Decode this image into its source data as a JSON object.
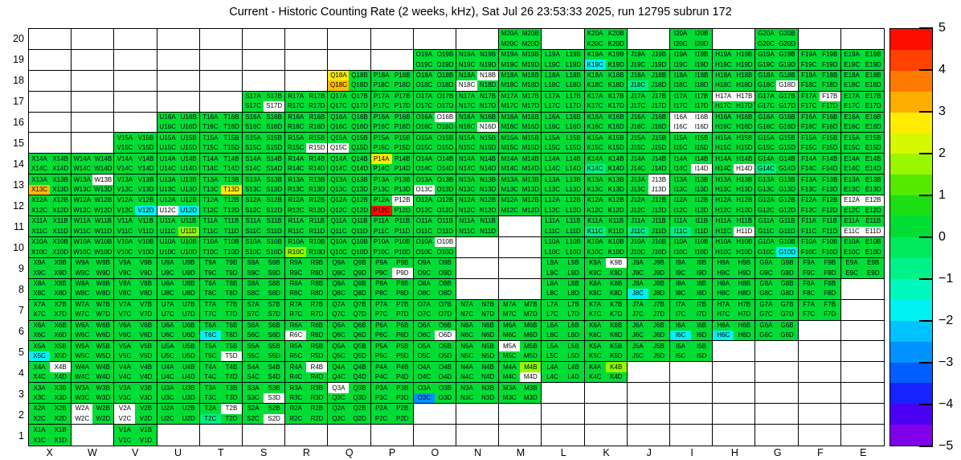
{
  "title": "Current - Historic Counting Rate (2 weeks, kHz), Sat Jul 26 23:53:33 2025, run 12795 subrun 172",
  "chart_data": {
    "type": "heatmap",
    "title": "Current - Historic Counting Rate (2 weeks, kHz), Sat Jul 26 23:53:33 2025, run 12795 subrun 172",
    "run": "12795",
    "subrun": "172",
    "columns": [
      "X",
      "W",
      "V",
      "U",
      "T",
      "S",
      "R",
      "Q",
      "P",
      "O",
      "N",
      "M",
      "L",
      "K",
      "J",
      "I",
      "H",
      "G",
      "F",
      "E"
    ],
    "rows": [
      20,
      19,
      18,
      17,
      16,
      15,
      14,
      13,
      12,
      11,
      10,
      9,
      8,
      7,
      6,
      5,
      4,
      3,
      2,
      1
    ],
    "cell_suffixes": [
      "A",
      "B",
      "C",
      "D"
    ],
    "value_scale": {
      "min": -5,
      "max": 5,
      "units": "kHz (current - historic)"
    },
    "palette": {
      "g": "#00DE36",
      "a": "#00EF82",
      "c": "#00F2F2",
      "G": "#93FB00",
      "y": "#FFEC00",
      "d": "#FFBC00",
      "r": "#FF0E00",
      "b": "#0092FF",
      "w": "#FFFFFF"
    },
    "palette_legend": {
      "g": "green ~0 to 1",
      "a": "spring green ~-0.5",
      "c": "cyan ~-2",
      "G": "chartreuse ~2",
      "y": "yellow ~3",
      "d": "gold ~3.5",
      "r": "red ~5",
      "b": "blue ~-2.5",
      "w": "white / out of range"
    },
    "cells": [
      [
        null,
        null,
        null,
        null,
        null,
        null,
        null,
        null,
        null,
        null,
        null,
        "gggg",
        null,
        "gggg",
        null,
        "gggg",
        null,
        "gggg",
        null,
        null
      ],
      [
        null,
        null,
        null,
        null,
        null,
        null,
        null,
        null,
        null,
        "gggg",
        "gggg",
        "gggg",
        "gggg",
        "ggcg",
        "gggg",
        "gggg",
        "gggg",
        "gggg",
        "gggg",
        "gggg"
      ],
      [
        null,
        null,
        null,
        null,
        null,
        null,
        null,
        "ygdg",
        "gggg",
        "gggg",
        "gwwg",
        "gggg",
        "gggg",
        "gggg",
        "ggag",
        "gggg",
        "gggg",
        "gggw",
        "gggg",
        "gggg"
      ],
      [
        null,
        null,
        null,
        null,
        null,
        "gggw",
        "gggg",
        "gggg",
        "gggg",
        "gggg",
        "gggg",
        "gggg",
        "gggg",
        "gggg",
        "gggg",
        "gggg",
        "wwgg",
        "gggg",
        "gwgg",
        "gggg"
      ],
      [
        null,
        null,
        null,
        "gggg",
        "gggg",
        "gggg",
        "gggg",
        "gggg",
        "gggg",
        "gwgg",
        "gggw",
        "gggg",
        "gggg",
        "gggg",
        "gggg",
        "wwww",
        "gggg",
        "gggg",
        "gggg",
        "gggg"
      ],
      [
        null,
        null,
        "gggg",
        "gggg",
        "gggg",
        "gggg",
        "gggw",
        "ggwg",
        "gggg",
        "gggg",
        "gggg",
        "gggg",
        "gggg",
        "gggg",
        "gggg",
        "gggg",
        "gggg",
        "gggg",
        "gggg",
        "gggg"
      ],
      [
        "gggg",
        "gggg",
        "gggg",
        "gggg",
        "gggg",
        "gggg",
        "gggg",
        "gggg",
        "yggg",
        "gggg",
        "gggg",
        "gggg",
        "gggg",
        "ggag",
        "gggg",
        "gggw",
        "gggw",
        "ggag",
        "gggg",
        "gggg"
      ],
      [
        "ggdg",
        "gwgg",
        "gggg",
        "gggg",
        "gggy",
        "gggg",
        "gggg",
        "gggg",
        "gggg",
        "ggwg",
        "gggg",
        "gggg",
        "gggg",
        "gggg",
        "gwgw",
        "gggg",
        "gggg",
        "gggg",
        "gggg",
        "gggg"
      ],
      [
        "gggg",
        "gggg",
        "gggc",
        "ggwc",
        "gggg",
        "gggg",
        "gggg",
        "gggg",
        "gwrg",
        "gggg",
        "gggg",
        "gggg",
        "gggg",
        "gggg",
        "gggg",
        "gggg",
        "gggg",
        "gggg",
        "gggg",
        "wwgg"
      ],
      [
        "gggg",
        "gggg",
        "gggg",
        "gggG",
        "gggg",
        "gggg",
        "gggg",
        "gggg",
        "gggg",
        "gggg",
        "gggg",
        null,
        "gggg",
        "ggag",
        "ggag",
        "ggag",
        "gggw",
        "gggg",
        "gggg",
        "ggww"
      ],
      [
        "gggg",
        "gggg",
        "gggg",
        "gggg",
        "gggg",
        "gggg",
        "ggGg",
        "gggg",
        "gggg",
        "gwgg",
        null,
        null,
        "gggg",
        "gggg",
        "gggg",
        "gggg",
        "gggg",
        "gggc",
        "gggg",
        "gggg"
      ],
      [
        "gggg",
        "gggg",
        "gggg",
        "gggg",
        "gggg",
        "gggg",
        "gggg",
        "gggg",
        "gggw",
        "gggg",
        null,
        null,
        "gggg",
        "gwgg",
        "gggg",
        "gggg",
        "gggg",
        "gggg",
        "gggg",
        "gggg"
      ],
      [
        "gggg",
        "gggg",
        "gggg",
        "gggg",
        "gggg",
        "gggg",
        "gggg",
        "gggg",
        "gggg",
        "gggg",
        null,
        null,
        "gggg",
        "gggg",
        "ggcg",
        "gggg",
        "gggg",
        "gggg",
        "gggg",
        null
      ],
      [
        "gggg",
        "gggg",
        "gggg",
        "gggg",
        "gggg",
        "gggg",
        "gggg",
        "gggg",
        "gggg",
        "gggg",
        "gggg",
        "gggg",
        "gggg",
        "gggg",
        "gggg",
        "gggg",
        "gggg",
        "gggg",
        "gggg",
        null
      ],
      [
        "gggg",
        "gggg",
        "gggg",
        "gggg",
        "ggcg",
        "gggg",
        "ggwg",
        "gggg",
        "gggg",
        "gggw",
        "gggg",
        "gggg",
        "gggg",
        "gggg",
        "gggg",
        "ggcg",
        "ggcg",
        "gggg",
        null,
        null
      ],
      [
        "ggcg",
        "gggg",
        "gggg",
        "gggg",
        "gggw",
        "gggg",
        "gggg",
        "gggg",
        "gggg",
        "gggg",
        "gggg",
        "wggg",
        "gggg",
        "gggg",
        "gggg",
        "gggg",
        null,
        null,
        null,
        null
      ],
      [
        "gwgg",
        "gggg",
        "gggg",
        "gggg",
        "gggg",
        "gggg",
        "gwgg",
        "gggg",
        "gggg",
        "gggg",
        "gggg",
        "gGgw",
        "gggg",
        "gGgg",
        null,
        null,
        null,
        null,
        null,
        null
      ],
      [
        "gggg",
        "gggg",
        "gggg",
        "gggg",
        "gggg",
        "gggw",
        "gggg",
        "wggg",
        "gggg",
        "ggbg",
        "gggg",
        "gggg",
        null,
        null,
        null,
        null,
        null,
        null,
        null,
        null
      ],
      [
        "gggg",
        "wgwg",
        "wgwg",
        "gggg",
        "gwag",
        "gggw",
        "gggg",
        "gggg",
        "gggg",
        null,
        null,
        null,
        null,
        null,
        null,
        null,
        null,
        null,
        null,
        null
      ],
      [
        "gggg",
        null,
        "gggg",
        null,
        null,
        null,
        null,
        null,
        null,
        null,
        null,
        null,
        null,
        null,
        null,
        null,
        null,
        null,
        null,
        null
      ]
    ],
    "colorbar": {
      "ticks": [
        5,
        4,
        3,
        2,
        1,
        0,
        -1,
        -2,
        -3,
        -4,
        -5
      ],
      "bands_top_to_bottom": [
        "#FB0D00",
        "#FF4200",
        "#FF7A00",
        "#FFAE00",
        "#FFEC00",
        "#D6F800",
        "#9BF700",
        "#55E900",
        "#1BDE15",
        "#00DE36",
        "#00E95D",
        "#00F288",
        "#00F8BC",
        "#00F2F2",
        "#00C2FF",
        "#0092FF",
        "#005EFF",
        "#1623FF",
        "#4A00F2",
        "#8000E9"
      ]
    }
  }
}
